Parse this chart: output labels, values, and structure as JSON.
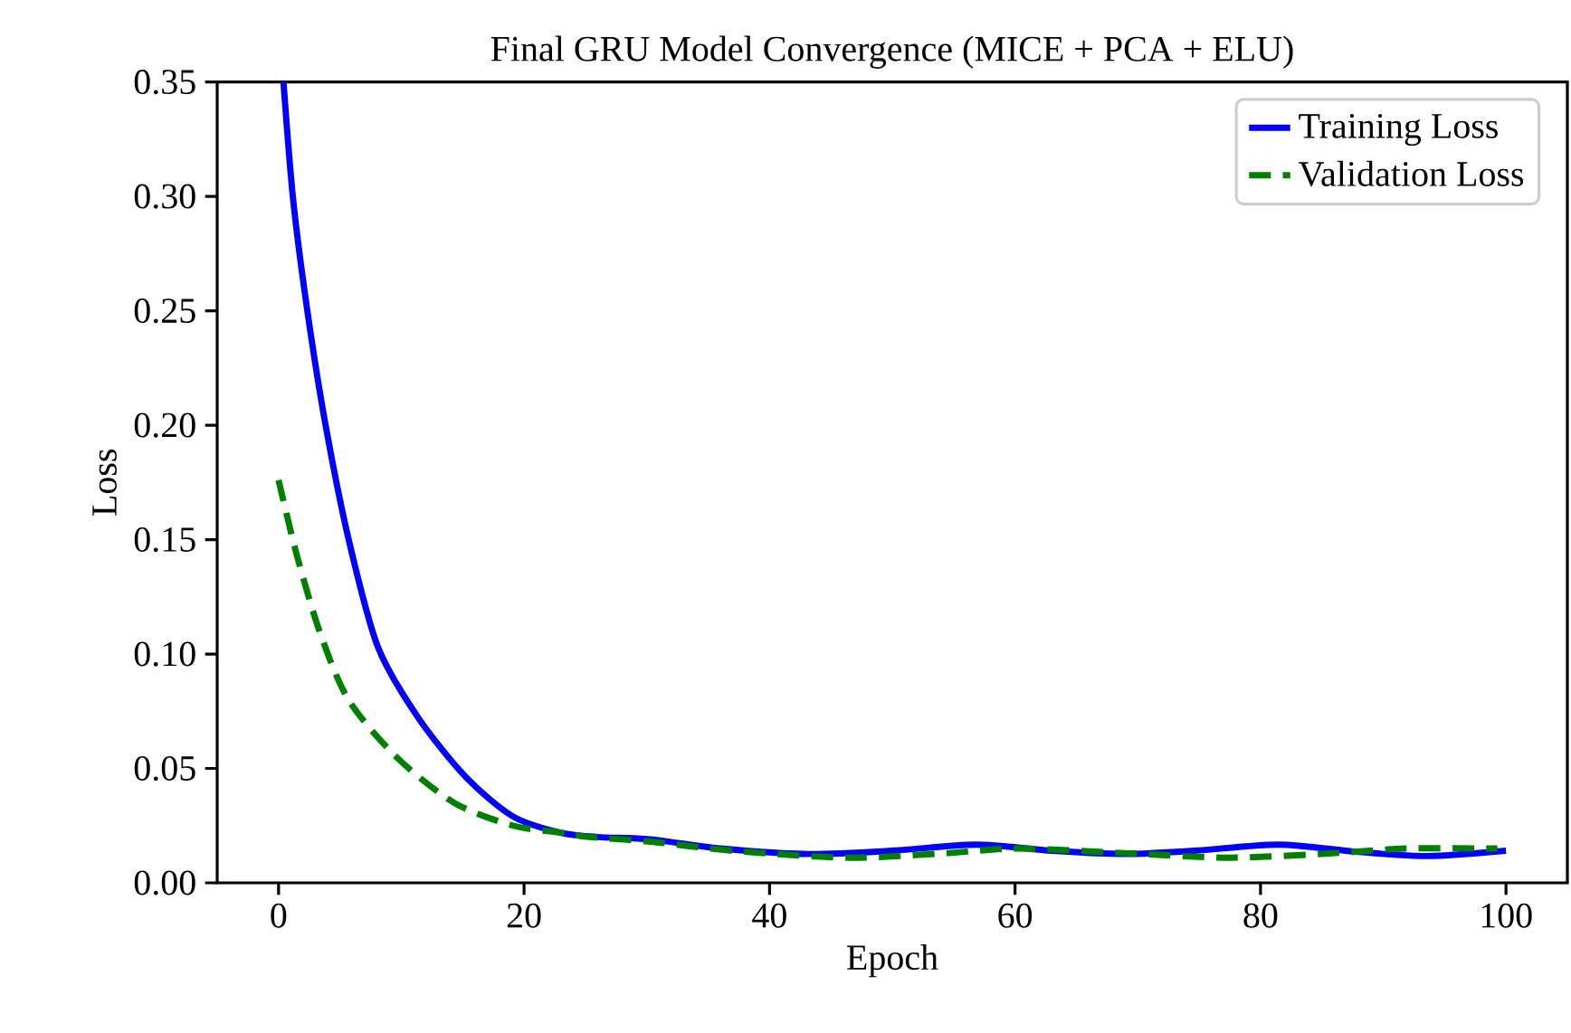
{
  "chart_data": {
    "type": "line",
    "title": "Final GRU Model Convergence (MICE + PCA + ELU)",
    "xlabel": "Epoch",
    "ylabel": "Loss",
    "xlim": [
      -5,
      105
    ],
    "ylim": [
      0,
      0.35
    ],
    "xticks": [
      0,
      20,
      40,
      60,
      80,
      100
    ],
    "yticks": [
      {
        "value": 0,
        "label": "0.00"
      },
      {
        "value": 0.05,
        "label": "0.05"
      },
      {
        "value": 0.1,
        "label": "0.10"
      },
      {
        "value": 0.15,
        "label": "0.15"
      },
      {
        "value": 0.2,
        "label": "0.20"
      },
      {
        "value": 0.25,
        "label": "0.25"
      },
      {
        "value": 0.3,
        "label": "0.30"
      },
      {
        "value": 0.35,
        "label": "0.35"
      }
    ],
    "legend": "top right",
    "grid": false,
    "marker": "none",
    "series": [
      {
        "name": "Training Loss",
        "color": "#0000ff",
        "line_style": "solid",
        "x": [
          0.4,
          1.2,
          2.4,
          3.9,
          5.8,
          8.1,
          11.4,
          15.3,
          19.1,
          22.9,
          26,
          30.3,
          36,
          43,
          49.9,
          56.8,
          63,
          68.9,
          74.6,
          81.5,
          87.8,
          93.6,
          100
        ],
        "values": [
          0.35,
          0.298,
          0.248,
          0.198,
          0.148,
          0.103,
          0.072,
          0.046,
          0.029,
          0.022,
          0.02,
          0.019,
          0.015,
          0.0126,
          0.014,
          0.0167,
          0.014,
          0.0126,
          0.014,
          0.0167,
          0.0136,
          0.0117,
          0.014
        ]
      },
      {
        "name": "Validation Loss",
        "color": "#008000",
        "line_style": "dashed",
        "x": [
          0,
          1.5,
          3.4,
          5.7,
          9.6,
          14.3,
          19.1,
          22.9,
          25.3,
          30.3,
          37,
          46.4,
          54.5,
          60.2,
          68.9,
          77.5,
          86.1,
          91.8,
          99.3
        ],
        "values": [
          0.176,
          0.143,
          0.109,
          0.08,
          0.055,
          0.035,
          0.025,
          0.022,
          0.02,
          0.018,
          0.014,
          0.011,
          0.013,
          0.015,
          0.013,
          0.011,
          0.013,
          0.015,
          0.015
        ]
      }
    ]
  }
}
